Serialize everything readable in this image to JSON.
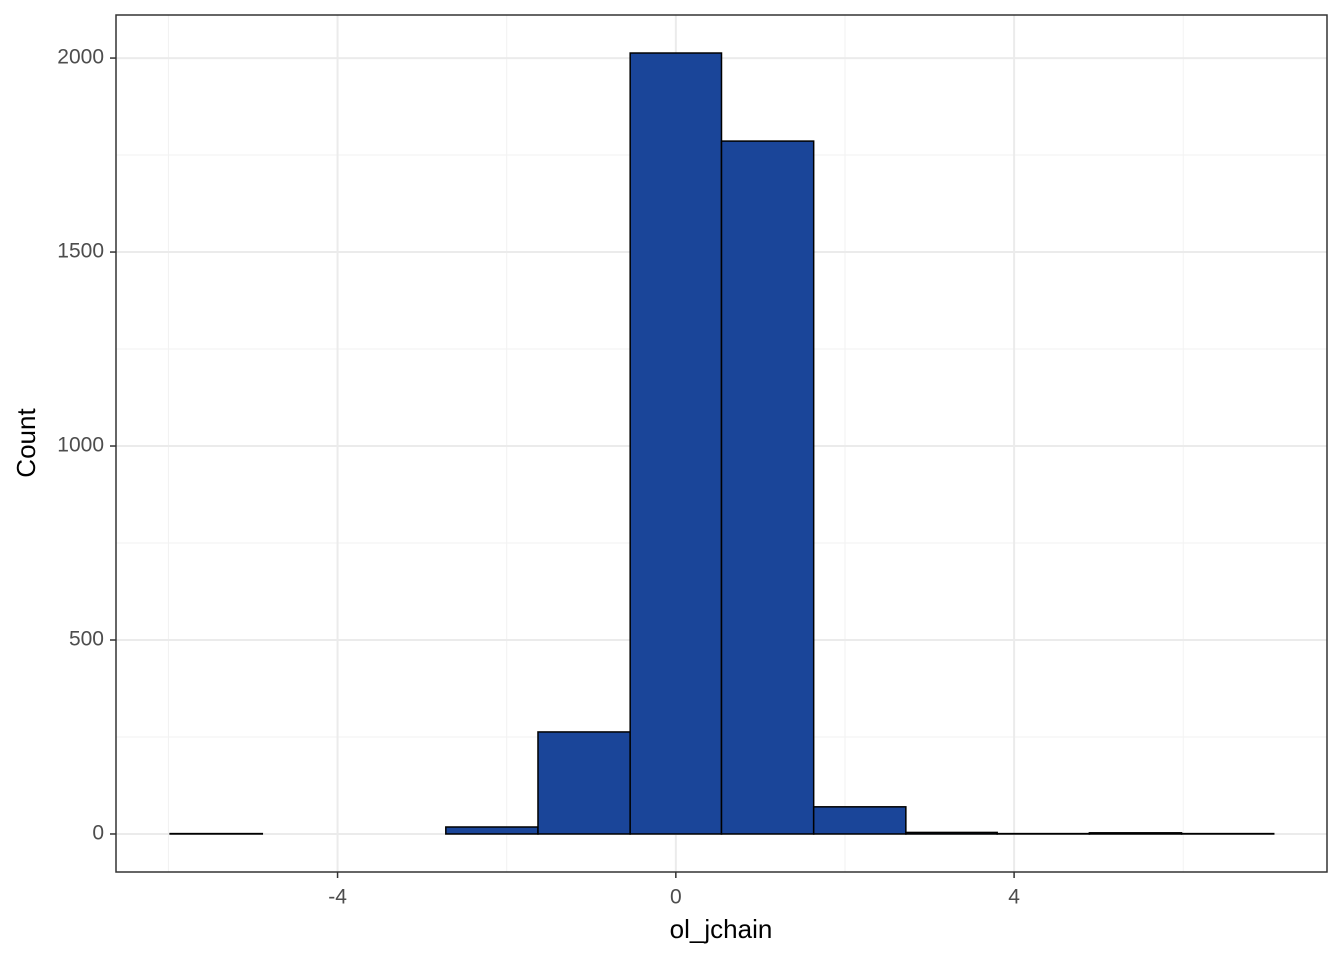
{
  "chart_data": {
    "type": "histogram",
    "x_label": "ol_jchain",
    "y_label": "Count",
    "bins": [
      -5.98,
      -4.89,
      -3.8,
      -2.72,
      -1.63,
      -0.54,
      0.54,
      1.63,
      2.72,
      3.8,
      4.89,
      5.98,
      7.07
    ],
    "values": [
      1,
      0,
      0,
      18,
      263,
      2013,
      1786,
      70,
      4,
      1,
      3,
      1
    ],
    "color": "#1a4599",
    "edge_color": "#000000",
    "xlim": [
      -6.62,
      7.7
    ],
    "xticks": [
      {
        "value": -4,
        "label": "-4"
      },
      0,
      4
    ],
    "ylim": [
      -98,
      2111
    ],
    "yticks": [
      0,
      500,
      1000,
      1500,
      2000
    ],
    "grid": true
  }
}
